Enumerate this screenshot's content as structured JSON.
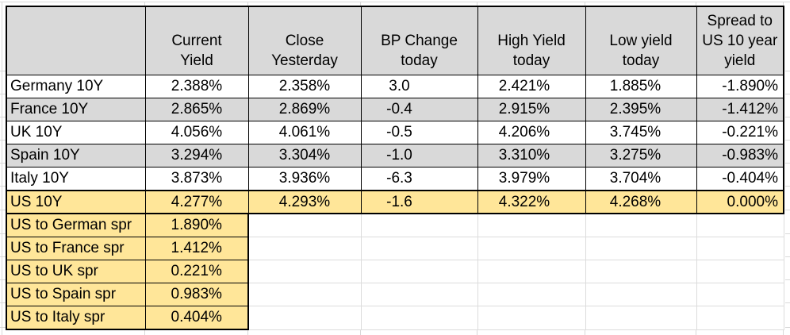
{
  "table": {
    "columns": [
      "",
      "Current\nYield",
      "Close\nYesterday",
      "BP Change\ntoday",
      "High Yield\ntoday",
      "Low yield\ntoday",
      "Spread to\nUS 10 year\nyield"
    ],
    "rows": [
      {
        "label": "Germany 10Y",
        "values": [
          "2.388%",
          "2.358%",
          "3.0",
          "2.421%",
          "1.885%",
          "-1.890%"
        ]
      },
      {
        "label": "France 10Y",
        "values": [
          "2.865%",
          "2.869%",
          "-0.4",
          "2.915%",
          "2.395%",
          "-1.412%"
        ]
      },
      {
        "label": "UK 10Y",
        "values": [
          "4.056%",
          "4.061%",
          "-0.5",
          "4.206%",
          "3.745%",
          "-0.221%"
        ]
      },
      {
        "label": "Spain 10Y",
        "values": [
          "3.294%",
          "3.304%",
          "-1.0",
          "3.310%",
          "3.275%",
          "-0.983%"
        ]
      },
      {
        "label": "Italy 10Y",
        "values": [
          "3.873%",
          "3.936%",
          "-6.3",
          "3.979%",
          "3.704%",
          "-0.404%"
        ]
      },
      {
        "label": "US 10Y",
        "values": [
          "4.277%",
          "4.293%",
          "-1.6",
          "4.322%",
          "4.268%",
          "0.000%"
        ]
      }
    ],
    "spread_rows": [
      {
        "label": "US to German spr",
        "value": "1.890%"
      },
      {
        "label": "US to France spr",
        "value": "1.412%"
      },
      {
        "label": "US to UK spr",
        "value": "0.221%"
      },
      {
        "label": "US to Spain spr",
        "value": "0.983%"
      },
      {
        "label": "US to Italy spr",
        "value": "0.404%"
      }
    ]
  },
  "colors": {
    "header_fill": "#D9D9D9",
    "alt_row_fill": "#D9D9D9",
    "highlight_fill": "#FFE699",
    "border": "#000000",
    "gridline": "#D9D9D9"
  }
}
